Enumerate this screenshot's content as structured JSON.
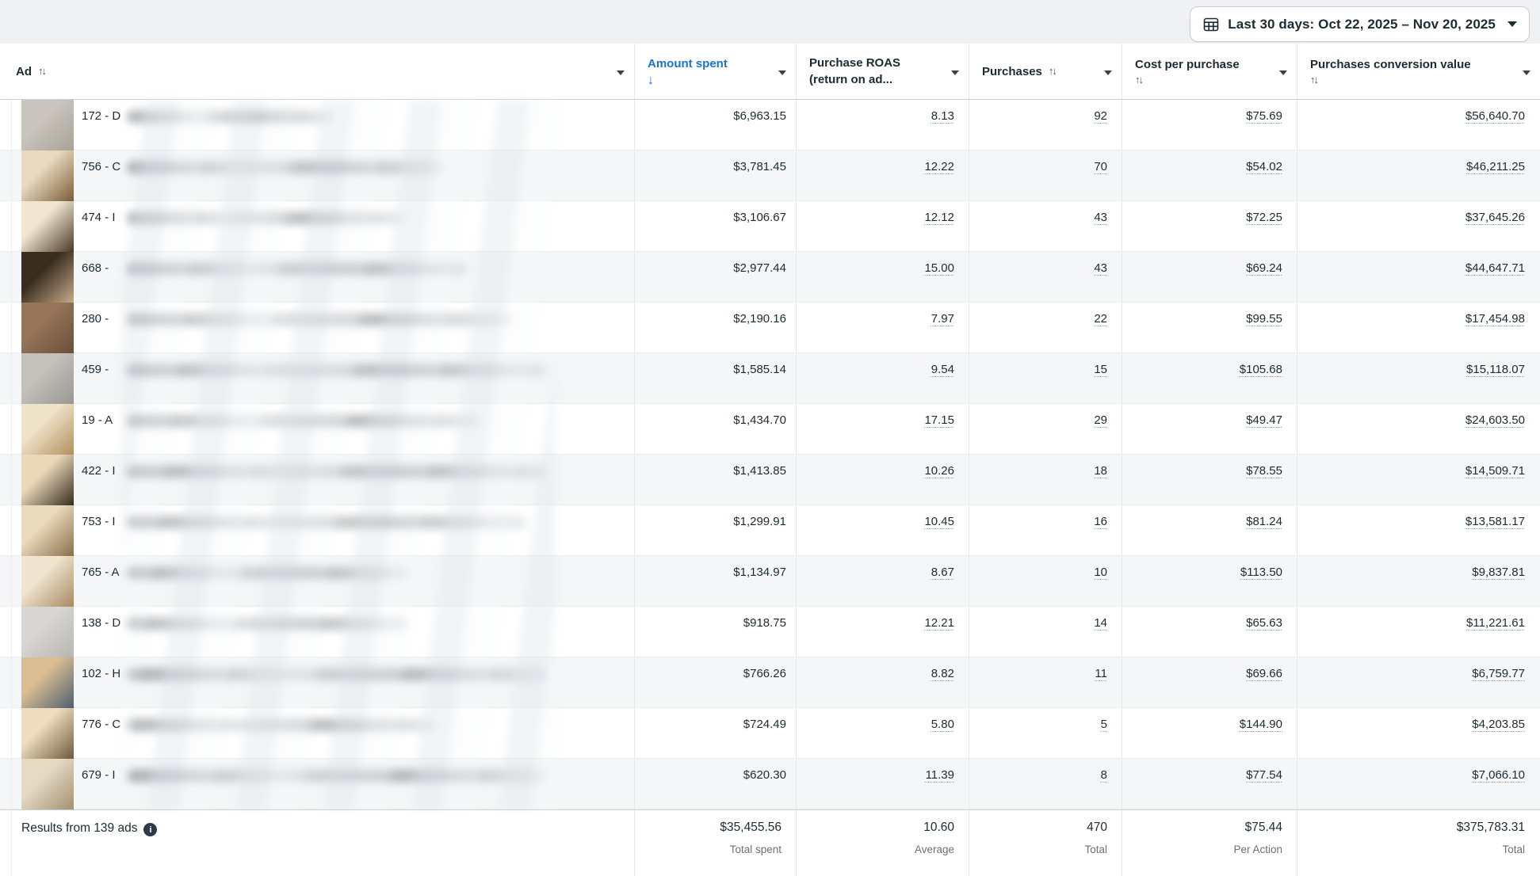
{
  "toolbar": {
    "date_range_label": "Last 30 days: Oct 22, 2025 – Nov 20, 2025"
  },
  "table": {
    "columns": [
      {
        "id": "ad",
        "label": "Ad",
        "sort": "updown",
        "sort_inline": true
      },
      {
        "id": "amount_spent",
        "label": "Amount spent",
        "sort": "down",
        "active": true
      },
      {
        "id": "purchase_roas",
        "label": "Purchase ROAS",
        "sub": "(return on ad..."
      },
      {
        "id": "purchases",
        "label": "Purchases",
        "sort": "updown",
        "sort_inline": true
      },
      {
        "id": "cost_per_purchase",
        "label": "Cost per purchase",
        "sort": "updown",
        "sort_inline": false
      },
      {
        "id": "purchases_conversion_value",
        "label": "Purchases conversion value",
        "sort": "updown",
        "sort_inline": false
      }
    ],
    "rows": [
      {
        "ad_name_prefix": "172 - D",
        "amount_spent": "$6,963.15",
        "purchase_roas": "8.13",
        "purchases": "92",
        "cost_per_purchase": "$75.69",
        "purchases_conversion_value": "$56,640.70",
        "name_blur_width": 260,
        "thumb": {
          "c1": "#c9c5be",
          "c2": "#aaa298"
        }
      },
      {
        "ad_name_prefix": "756 - C",
        "amount_spent": "$3,781.45",
        "purchase_roas": "12.22",
        "purchases": "70",
        "cost_per_purchase": "$54.02",
        "purchases_conversion_value": "$46,211.25",
        "name_blur_width": 400,
        "thumb": {
          "c1": "#e8d9bf",
          "c2": "#7a5c39"
        }
      },
      {
        "ad_name_prefix": "474 - I",
        "amount_spent": "$3,106.67",
        "purchase_roas": "12.12",
        "purchases": "43",
        "cost_per_purchase": "$72.25",
        "purchases_conversion_value": "$37,645.26",
        "name_blur_width": 350,
        "thumb": {
          "c1": "#f0e6d2",
          "c2": "#4a3826"
        }
      },
      {
        "ad_name_prefix": "668 -",
        "amount_spent": "$2,977.44",
        "purchase_roas": "15.00",
        "purchases": "43",
        "cost_per_purchase": "$69.24",
        "purchases_conversion_value": "$44,647.71",
        "name_blur_width": 430,
        "thumb": {
          "c1": "#3a2c1e",
          "c2": "#c3ab89"
        }
      },
      {
        "ad_name_prefix": "280 -",
        "amount_spent": "$2,190.16",
        "purchase_roas": "7.97",
        "purchases": "22",
        "cost_per_purchase": "$99.55",
        "purchases_conversion_value": "$17,454.98",
        "name_blur_width": 485,
        "thumb": {
          "c1": "#96755a",
          "c2": "#6b4f38"
        }
      },
      {
        "ad_name_prefix": "459 -",
        "amount_spent": "$1,585.14",
        "purchase_roas": "9.54",
        "purchases": "15",
        "cost_per_purchase": "$105.68",
        "purchases_conversion_value": "$15,118.07",
        "name_blur_width": 530,
        "thumb": {
          "c1": "#c4c1bc",
          "c2": "#999792"
        }
      },
      {
        "ad_name_prefix": "19 - A",
        "amount_spent": "$1,434.70",
        "purchase_roas": "17.15",
        "purchases": "29",
        "cost_per_purchase": "$49.47",
        "purchases_conversion_value": "$24,603.50",
        "name_blur_width": 445,
        "thumb": {
          "c1": "#efe3c9",
          "c2": "#b2905e"
        }
      },
      {
        "ad_name_prefix": "422 - I",
        "amount_spent": "$1,413.85",
        "purchase_roas": "10.26",
        "purchases": "18",
        "cost_per_purchase": "$78.55",
        "purchases_conversion_value": "$14,509.71",
        "name_blur_width": 530,
        "thumb": {
          "c1": "#e9d9b8",
          "c2": "#352a1c"
        }
      },
      {
        "ad_name_prefix": "753 - I",
        "amount_spent": "$1,299.91",
        "purchase_roas": "10.45",
        "purchases": "16",
        "cost_per_purchase": "$81.24",
        "purchases_conversion_value": "$13,581.17",
        "name_blur_width": 505,
        "thumb": {
          "c1": "#eadbbc",
          "c2": "#8a6e4c"
        }
      },
      {
        "ad_name_prefix": "765 - A",
        "amount_spent": "$1,134.97",
        "purchase_roas": "8.67",
        "purchases": "10",
        "cost_per_purchase": "$113.50",
        "purchases_conversion_value": "$9,837.81",
        "name_blur_width": 355,
        "thumb": {
          "c1": "#f0e5d0",
          "c2": "#a8895f"
        }
      },
      {
        "ad_name_prefix": "138 - D",
        "amount_spent": "$918.75",
        "purchase_roas": "12.21",
        "purchases": "14",
        "cost_per_purchase": "$65.63",
        "purchases_conversion_value": "$11,221.61",
        "name_blur_width": 355,
        "thumb": {
          "c1": "#d8d6d4",
          "c2": "#b8b5b1"
        }
      },
      {
        "ad_name_prefix": "102 - H",
        "amount_spent": "$766.26",
        "purchase_roas": "8.82",
        "purchases": "11",
        "cost_per_purchase": "$69.66",
        "purchases_conversion_value": "$6,759.77",
        "name_blur_width": 530,
        "thumb": {
          "c1": "#d9bd93",
          "c2": "#4e5f6e"
        }
      },
      {
        "ad_name_prefix": "776 - C",
        "amount_spent": "$724.49",
        "purchase_roas": "5.80",
        "purchases": "5",
        "cost_per_purchase": "$144.90",
        "purchases_conversion_value": "$4,203.85",
        "name_blur_width": 390,
        "thumb": {
          "c1": "#eddcbe",
          "c2": "#6e583c"
        }
      },
      {
        "ad_name_prefix": "679 - I",
        "amount_spent": "$620.30",
        "purchase_roas": "11.39",
        "purchases": "8",
        "cost_per_purchase": "$77.54",
        "purchases_conversion_value": "$7,066.10",
        "name_blur_width": 530,
        "thumb": {
          "c1": "#e6dac4",
          "c2": "#a3916f"
        }
      }
    ],
    "footer": {
      "results_label": "Results from 139 ads",
      "totals": [
        {
          "value": "$35,455.56",
          "label": "Total spent"
        },
        {
          "value": "10.60",
          "label": "Average"
        },
        {
          "value": "470",
          "label": "Total"
        },
        {
          "value": "$75.44",
          "label": "Per Action"
        },
        {
          "value": "$375,783.31",
          "label": "Total"
        }
      ]
    }
  },
  "icons": {
    "calendar": "calendar-grid-icon",
    "sort_updown_glyph": "↑↓",
    "sort_down_glyph": "↓",
    "info": "info-icon"
  },
  "colors": {
    "accent_blue": "#1775d2",
    "text_primary": "#1c2b33",
    "text_secondary": "#68707a",
    "row_stripe": "#f5f6f8",
    "border_light": "#e7e9ec",
    "border_strong": "#ccd1d7",
    "page_background": "#eff1f5"
  }
}
